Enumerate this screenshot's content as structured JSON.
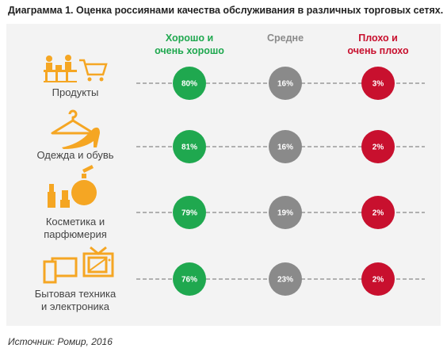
{
  "title": "Диаграмма 1. Оценка россиянами качества обслуживания в различных торговых сетях.",
  "source": "Источник: Ромир, 2016",
  "colors": {
    "good": "#1fa84f",
    "medium": "#8a8a8a",
    "bad": "#c8102e",
    "icon": "#f5a623",
    "line": "#888888"
  },
  "chart_data": {
    "type": "table",
    "columns": [
      {
        "key": "good",
        "label_lines": [
          "Хорошо и",
          "очень хорошо"
        ]
      },
      {
        "key": "medium",
        "label_lines": [
          "Средне"
        ]
      },
      {
        "key": "bad",
        "label_lines": [
          "Плохо и",
          "очень плохо"
        ]
      }
    ],
    "rows": [
      {
        "icon": "grocery-cart-icon",
        "label_lines": [
          "Продукты"
        ],
        "good": "80%",
        "medium": "16%",
        "bad": "3%"
      },
      {
        "icon": "clothes-shoe-icon",
        "label_lines": [
          "Одежда и обувь"
        ],
        "good": "81%",
        "medium": "16%",
        "bad": "2%"
      },
      {
        "icon": "cosmetics-perfume-icon",
        "label_lines": [
          "Косметика и",
          "парфюмерия"
        ],
        "good": "79%",
        "medium": "19%",
        "bad": "2%"
      },
      {
        "icon": "electronics-tv-icon",
        "label_lines": [
          "Бытовая техника",
          "и электроника"
        ],
        "good": "76%",
        "medium": "23%",
        "bad": "2%"
      }
    ]
  }
}
